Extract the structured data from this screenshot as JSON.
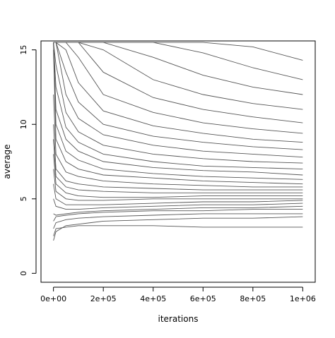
{
  "chart_data": {
    "type": "line",
    "title": "",
    "xlabel": "iterations",
    "ylabel": "average",
    "xlim": [
      -50000,
      1050000
    ],
    "ylim": [
      -0.6,
      15.6
    ],
    "x_ticks": [
      {
        "value": 0,
        "label": "0e+00"
      },
      {
        "value": 200000,
        "label": "2e+05"
      },
      {
        "value": 400000,
        "label": "4e+05"
      },
      {
        "value": 600000,
        "label": "6e+05"
      },
      {
        "value": 800000,
        "label": "8e+05"
      },
      {
        "value": 1000000,
        "label": "1e+06"
      }
    ],
    "y_ticks": [
      {
        "value": 0,
        "label": "0"
      },
      {
        "value": 5,
        "label": "5"
      },
      {
        "value": 10,
        "label": "10"
      },
      {
        "value": 15,
        "label": "15"
      }
    ],
    "line_color": "#555555",
    "grid": false,
    "series": [
      {
        "x": [
          0,
          10000,
          50000,
          100000,
          200000,
          400000,
          600000,
          800000,
          1000000
        ],
        "y": [
          2.5,
          3.0,
          3.1,
          3.2,
          3.2,
          3.2,
          3.1,
          3.1,
          3.1
        ]
      },
      {
        "x": [
          0,
          10000,
          50000,
          100000,
          200000,
          400000,
          600000,
          800000,
          1000000
        ],
        "y": [
          2.2,
          2.8,
          3.2,
          3.3,
          3.5,
          3.6,
          3.7,
          3.7,
          3.8
        ]
      },
      {
        "x": [
          0,
          10000,
          50000,
          100000,
          200000,
          400000,
          600000,
          800000,
          1000000
        ],
        "y": [
          3.0,
          3.4,
          3.6,
          3.7,
          3.8,
          3.9,
          4.0,
          4.0,
          4.0
        ]
      },
      {
        "x": [
          0,
          10000,
          50000,
          100000,
          200000,
          400000,
          600000,
          800000,
          1000000
        ],
        "y": [
          3.5,
          3.8,
          3.9,
          4.0,
          4.1,
          4.2,
          4.2,
          4.3,
          4.3
        ]
      },
      {
        "x": [
          0,
          10000,
          50000,
          100000,
          200000,
          400000,
          600000,
          800000,
          1000000
        ],
        "y": [
          4.0,
          3.9,
          4.0,
          4.1,
          4.2,
          4.3,
          4.4,
          4.4,
          4.5
        ]
      },
      {
        "x": [
          0,
          10000,
          50000,
          100000,
          200000,
          400000,
          600000,
          800000,
          1000000
        ],
        "y": [
          5.0,
          4.5,
          4.3,
          4.3,
          4.4,
          4.5,
          4.6,
          4.6,
          4.7
        ]
      },
      {
        "x": [
          0,
          10000,
          50000,
          100000,
          200000,
          400000,
          600000,
          800000,
          1000000
        ],
        "y": [
          6.0,
          5.0,
          4.6,
          4.6,
          4.6,
          4.7,
          4.8,
          4.8,
          4.9
        ]
      },
      {
        "x": [
          0,
          10000,
          50000,
          100000,
          200000,
          400000,
          600000,
          800000,
          1000000
        ],
        "y": [
          7.0,
          5.5,
          5.0,
          4.9,
          4.9,
          5.0,
          5.0,
          5.0,
          5.0
        ]
      },
      {
        "x": [
          0,
          10000,
          50000,
          100000,
          200000,
          400000,
          600000,
          800000,
          1000000
        ],
        "y": [
          8.0,
          6.0,
          5.4,
          5.2,
          5.1,
          5.1,
          5.2,
          5.2,
          5.2
        ]
      },
      {
        "x": [
          0,
          10000,
          50000,
          100000,
          200000,
          400000,
          600000,
          800000,
          1000000
        ],
        "y": [
          9.0,
          6.5,
          5.8,
          5.6,
          5.5,
          5.4,
          5.4,
          5.4,
          5.4
        ]
      },
      {
        "x": [
          0,
          10000,
          50000,
          100000,
          200000,
          400000,
          600000,
          800000,
          1000000
        ],
        "y": [
          10.0,
          7.0,
          6.2,
          6.0,
          5.8,
          5.7,
          5.6,
          5.6,
          5.6
        ]
      },
      {
        "x": [
          0,
          10000,
          50000,
          100000,
          200000,
          400000,
          600000,
          800000,
          1000000
        ],
        "y": [
          12.0,
          8.0,
          6.8,
          6.5,
          6.2,
          6.0,
          5.9,
          5.8,
          5.8
        ]
      },
      {
        "x": [
          0,
          10000,
          50000,
          100000,
          200000,
          400000,
          600000,
          800000,
          1000000
        ],
        "y": [
          15.0,
          9.0,
          7.5,
          7.0,
          6.6,
          6.4,
          6.2,
          6.1,
          6.0
        ]
      },
      {
        "x": [
          0,
          10000,
          50000,
          100000,
          200000,
          400000,
          600000,
          800000,
          1000000
        ],
        "y": [
          15.5,
          10.0,
          8.2,
          7.6,
          7.0,
          6.7,
          6.5,
          6.4,
          6.3
        ]
      },
      {
        "x": [
          0,
          10000,
          50000,
          100000,
          200000,
          400000,
          600000,
          800000,
          1000000
        ],
        "y": [
          15.5,
          11.0,
          9.0,
          8.2,
          7.5,
          7.1,
          6.9,
          6.8,
          6.6
        ]
      },
      {
        "x": [
          0,
          10000,
          50000,
          100000,
          200000,
          400000,
          600000,
          800000,
          1000000
        ],
        "y": [
          15.5,
          12.5,
          9.8,
          8.8,
          8.0,
          7.5,
          7.2,
          7.1,
          7.0
        ]
      },
      {
        "x": [
          0,
          10000,
          50000,
          100000,
          200000,
          400000,
          600000,
          800000,
          1000000
        ],
        "y": [
          15.5,
          14.0,
          10.8,
          9.5,
          8.6,
          8.0,
          7.7,
          7.5,
          7.4
        ]
      },
      {
        "x": [
          0,
          10000,
          50000,
          100000,
          200000,
          400000,
          600000,
          800000,
          1000000
        ],
        "y": [
          15.5,
          15.5,
          12.0,
          10.4,
          9.3,
          8.6,
          8.2,
          8.0,
          7.8
        ]
      },
      {
        "x": [
          0,
          10000,
          50000,
          100000,
          200000,
          400000,
          600000,
          800000,
          1000000
        ],
        "y": [
          15.5,
          15.5,
          13.5,
          11.5,
          10.0,
          9.2,
          8.8,
          8.5,
          8.3
        ]
      },
      {
        "x": [
          0,
          10000,
          50000,
          100000,
          200000,
          400000,
          600000,
          800000,
          1000000
        ],
        "y": [
          15.5,
          15.5,
          15.0,
          12.8,
          10.9,
          9.9,
          9.4,
          9.0,
          8.8
        ]
      },
      {
        "x": [
          0,
          10000,
          50000,
          100000,
          200000,
          400000,
          600000,
          800000,
          1000000
        ],
        "y": [
          15.5,
          15.5,
          15.5,
          14.5,
          12.0,
          10.8,
          10.1,
          9.7,
          9.4
        ]
      },
      {
        "x": [
          0,
          10000,
          50000,
          100000,
          200000,
          400000,
          600000,
          800000,
          1000000
        ],
        "y": [
          15.5,
          15.5,
          15.5,
          15.5,
          13.5,
          11.8,
          11.0,
          10.5,
          10.1
        ]
      },
      {
        "x": [
          0,
          10000,
          50000,
          100000,
          200000,
          400000,
          600000,
          800000,
          1000000
        ],
        "y": [
          15.5,
          15.5,
          15.5,
          15.5,
          15.0,
          13.0,
          12.0,
          11.4,
          11.0
        ]
      },
      {
        "x": [
          0,
          10000,
          50000,
          100000,
          200000,
          400000,
          600000,
          800000,
          1000000
        ],
        "y": [
          15.5,
          15.5,
          15.5,
          15.5,
          15.5,
          14.5,
          13.3,
          12.5,
          12.0
        ]
      },
      {
        "x": [
          0,
          10000,
          50000,
          100000,
          200000,
          400000,
          600000,
          800000,
          1000000
        ],
        "y": [
          15.5,
          15.5,
          15.5,
          15.5,
          15.5,
          15.5,
          14.8,
          13.8,
          13.0
        ]
      },
      {
        "x": [
          0,
          10000,
          50000,
          100000,
          200000,
          400000,
          600000,
          800000,
          1000000
        ],
        "y": [
          15.5,
          15.5,
          15.5,
          15.5,
          15.5,
          15.5,
          15.5,
          15.2,
          14.3
        ]
      }
    ]
  }
}
